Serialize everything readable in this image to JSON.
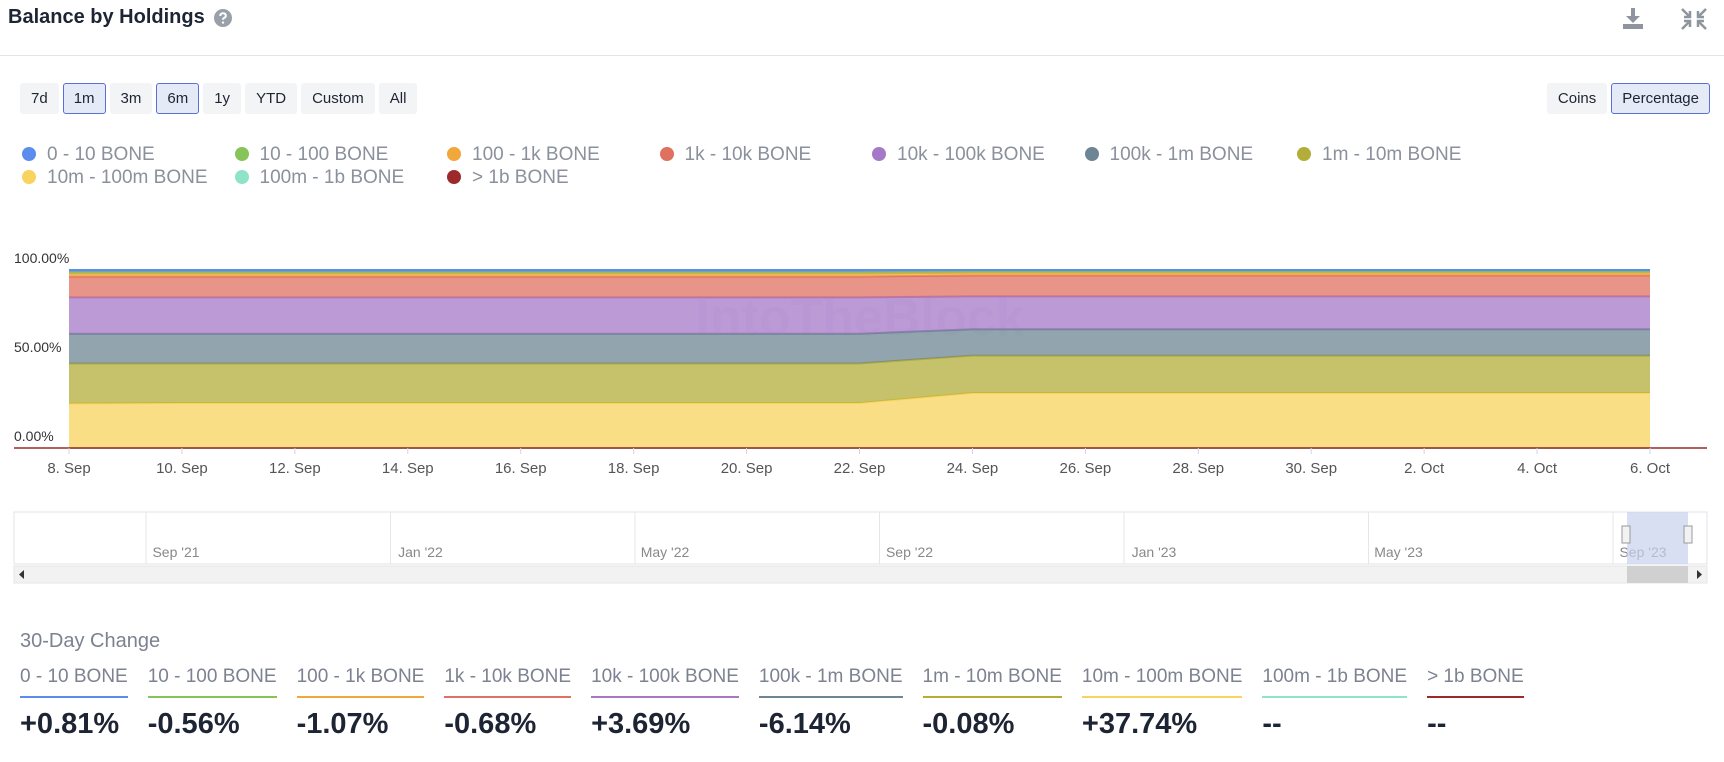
{
  "header": {
    "title": "Balance by Holdings"
  },
  "range_buttons": [
    "7d",
    "1m",
    "3m",
    "6m",
    "1y",
    "YTD",
    "Custom",
    "All"
  ],
  "mode_buttons": [
    "Coins",
    "Percentage"
  ],
  "chart_data": {
    "type": "area",
    "stacked": true,
    "watermark": "IntoTheBlock",
    "categories": [
      "8. Sep",
      "10. Sep",
      "12. Sep",
      "14. Sep",
      "16. Sep",
      "18. Sep",
      "20. Sep",
      "22. Sep",
      "24. Sep",
      "26. Sep",
      "28. Sep",
      "30. Sep",
      "2. Oct",
      "4. Oct",
      "6. Oct"
    ],
    "series": [
      {
        "name": "0 - 10 BONE",
        "color": "#5b8def",
        "values": [
          0.9,
          0.9,
          0.9,
          0.9,
          0.9,
          0.9,
          0.9,
          0.9,
          0.6,
          0.6,
          0.6,
          0.6,
          0.6,
          0.6,
          0.6
        ]
      },
      {
        "name": "10 - 100 BONE",
        "color": "#86c45a",
        "values": [
          1.0,
          1.0,
          1.0,
          1.0,
          1.0,
          1.0,
          1.0,
          1.0,
          0.9,
          0.9,
          0.9,
          0.9,
          0.9,
          0.9,
          0.9
        ]
      },
      {
        "name": "100 - 1k BONE",
        "color": "#f0a73c",
        "values": [
          1.8,
          1.8,
          1.8,
          1.8,
          1.8,
          1.8,
          1.8,
          1.8,
          1.6,
          1.6,
          1.6,
          1.6,
          1.6,
          1.6,
          1.6
        ]
      },
      {
        "name": "1k - 10k BONE",
        "color": "#e07060",
        "values": [
          11.7,
          11.7,
          11.7,
          11.7,
          11.7,
          11.7,
          11.7,
          11.7,
          11.7,
          11.7,
          11.7,
          11.7,
          11.7,
          11.7,
          11.7
        ]
      },
      {
        "name": "10k - 100k BONE",
        "color": "#a678c8",
        "values": [
          20.4,
          20.4,
          20.4,
          20.4,
          20.4,
          20.4,
          20.4,
          20.4,
          18.5,
          18.5,
          18.5,
          18.5,
          18.5,
          18.5,
          18.5
        ]
      },
      {
        "name": "100k - 1m BONE",
        "color": "#6e8593",
        "values": [
          16.7,
          16.7,
          16.7,
          16.7,
          16.7,
          16.7,
          16.7,
          16.7,
          14.8,
          14.8,
          14.8,
          14.8,
          14.8,
          14.8,
          14.8
        ]
      },
      {
        "name": "1m - 10m BONE",
        "color": "#b3ad3a",
        "values": [
          22.5,
          22.2,
          22.2,
          22.2,
          22.2,
          22.2,
          22.2,
          22.2,
          21.0,
          21.0,
          21.0,
          21.0,
          21.0,
          21.0,
          21.0
        ]
      },
      {
        "name": "10m - 100m BONE",
        "color": "#f8d35e",
        "values": [
          25.0,
          25.3,
          25.3,
          25.3,
          25.3,
          25.3,
          25.3,
          25.3,
          30.9,
          30.9,
          30.9,
          30.9,
          30.9,
          30.9,
          30.9
        ]
      },
      {
        "name": "100m - 1b BONE",
        "color": "#8ee3c8",
        "values": [
          0,
          0,
          0,
          0,
          0,
          0,
          0,
          0,
          0,
          0,
          0,
          0,
          0,
          0,
          0
        ]
      },
      {
        "name": "> 1b BONE",
        "color": "#9c2a2a",
        "values": [
          0,
          0,
          0,
          0,
          0,
          0,
          0,
          0,
          0,
          0,
          0,
          0,
          0,
          0,
          0
        ]
      }
    ],
    "ylim": [
      0,
      100
    ],
    "yticks": [
      {
        "value": 0,
        "label": "0.00%"
      },
      {
        "value": 50,
        "label": "50.00%"
      },
      {
        "value": 100,
        "label": "100.00%"
      }
    ],
    "grid": false
  },
  "navigator": {
    "labels": [
      "Sep '21",
      "Jan '22",
      "May '22",
      "Sep '22",
      "Jan '23",
      "May '23",
      "Sep '23"
    ]
  },
  "change": {
    "title": "30-Day Change",
    "items": [
      {
        "name": "0 - 10 BONE",
        "value": "+0.81%"
      },
      {
        "name": "10 - 100 BONE",
        "value": "-0.56%"
      },
      {
        "name": "100 - 1k BONE",
        "value": "-1.07%"
      },
      {
        "name": "1k - 10k BONE",
        "value": "-0.68%"
      },
      {
        "name": "10k - 100k BONE",
        "value": "+3.69%"
      },
      {
        "name": "100k - 1m BONE",
        "value": "-6.14%"
      },
      {
        "name": "1m - 10m BONE",
        "value": "-0.08%"
      },
      {
        "name": "10m - 100m BONE",
        "value": "+37.74%"
      },
      {
        "name": "100m - 1b BONE",
        "value": "--"
      },
      {
        "name": "> 1b BONE",
        "value": "--"
      }
    ]
  }
}
